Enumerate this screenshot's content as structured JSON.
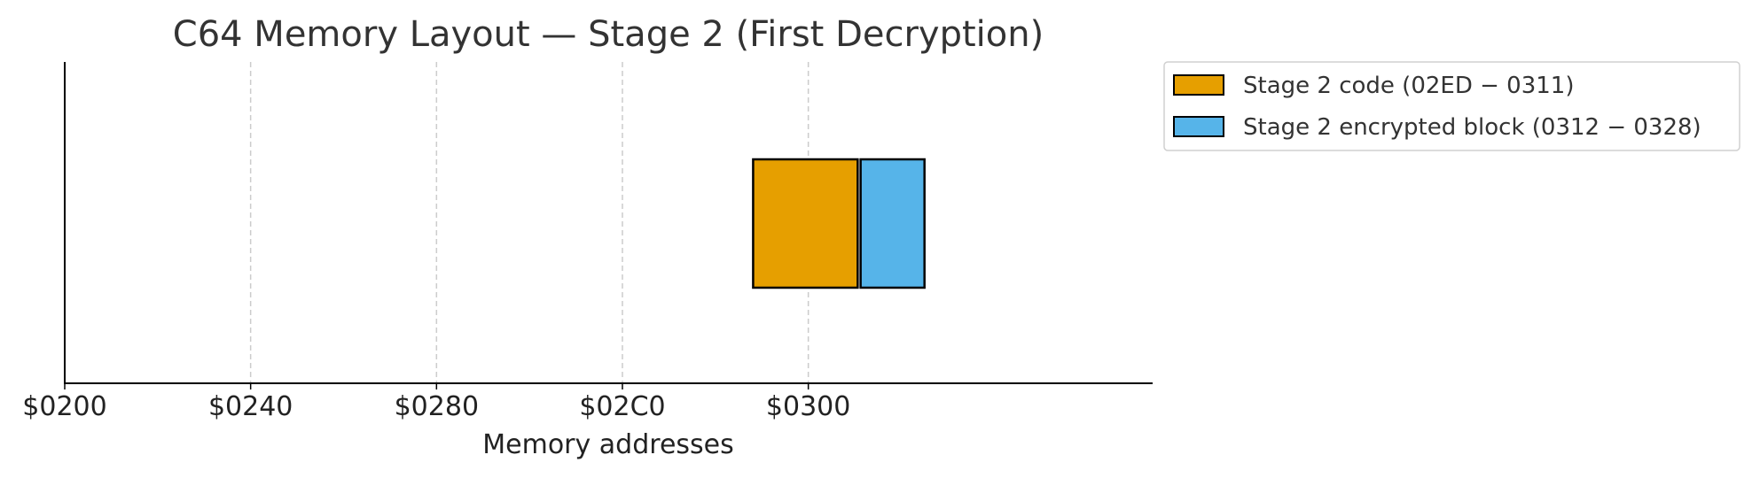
{
  "chart_data": {
    "type": "bar",
    "orientation": "horizontal",
    "title": "C64 Memory Layout — Stage 2 (First Decryption)",
    "xlabel": "Memory addresses",
    "ylabel": "",
    "xlim": [
      512,
      810
    ],
    "xticks": [
      {
        "value": 512,
        "label": "$0200"
      },
      {
        "value": 576,
        "label": "$0240"
      },
      {
        "value": 640,
        "label": "$0280"
      },
      {
        "value": 704,
        "label": "$02C0"
      },
      {
        "value": 768,
        "label": "$0300"
      }
    ],
    "grid": "x-dashed",
    "legend_position": "outside-top-right",
    "segments": [
      {
        "name": "Stage 2 code (02ED − 0311)",
        "start": 749,
        "end": 785,
        "color": "#E69F00"
      },
      {
        "name": "Stage 2 encrypted block (0312 − 0328)",
        "start": 786,
        "end": 808,
        "color": "#56B4E9"
      }
    ]
  }
}
